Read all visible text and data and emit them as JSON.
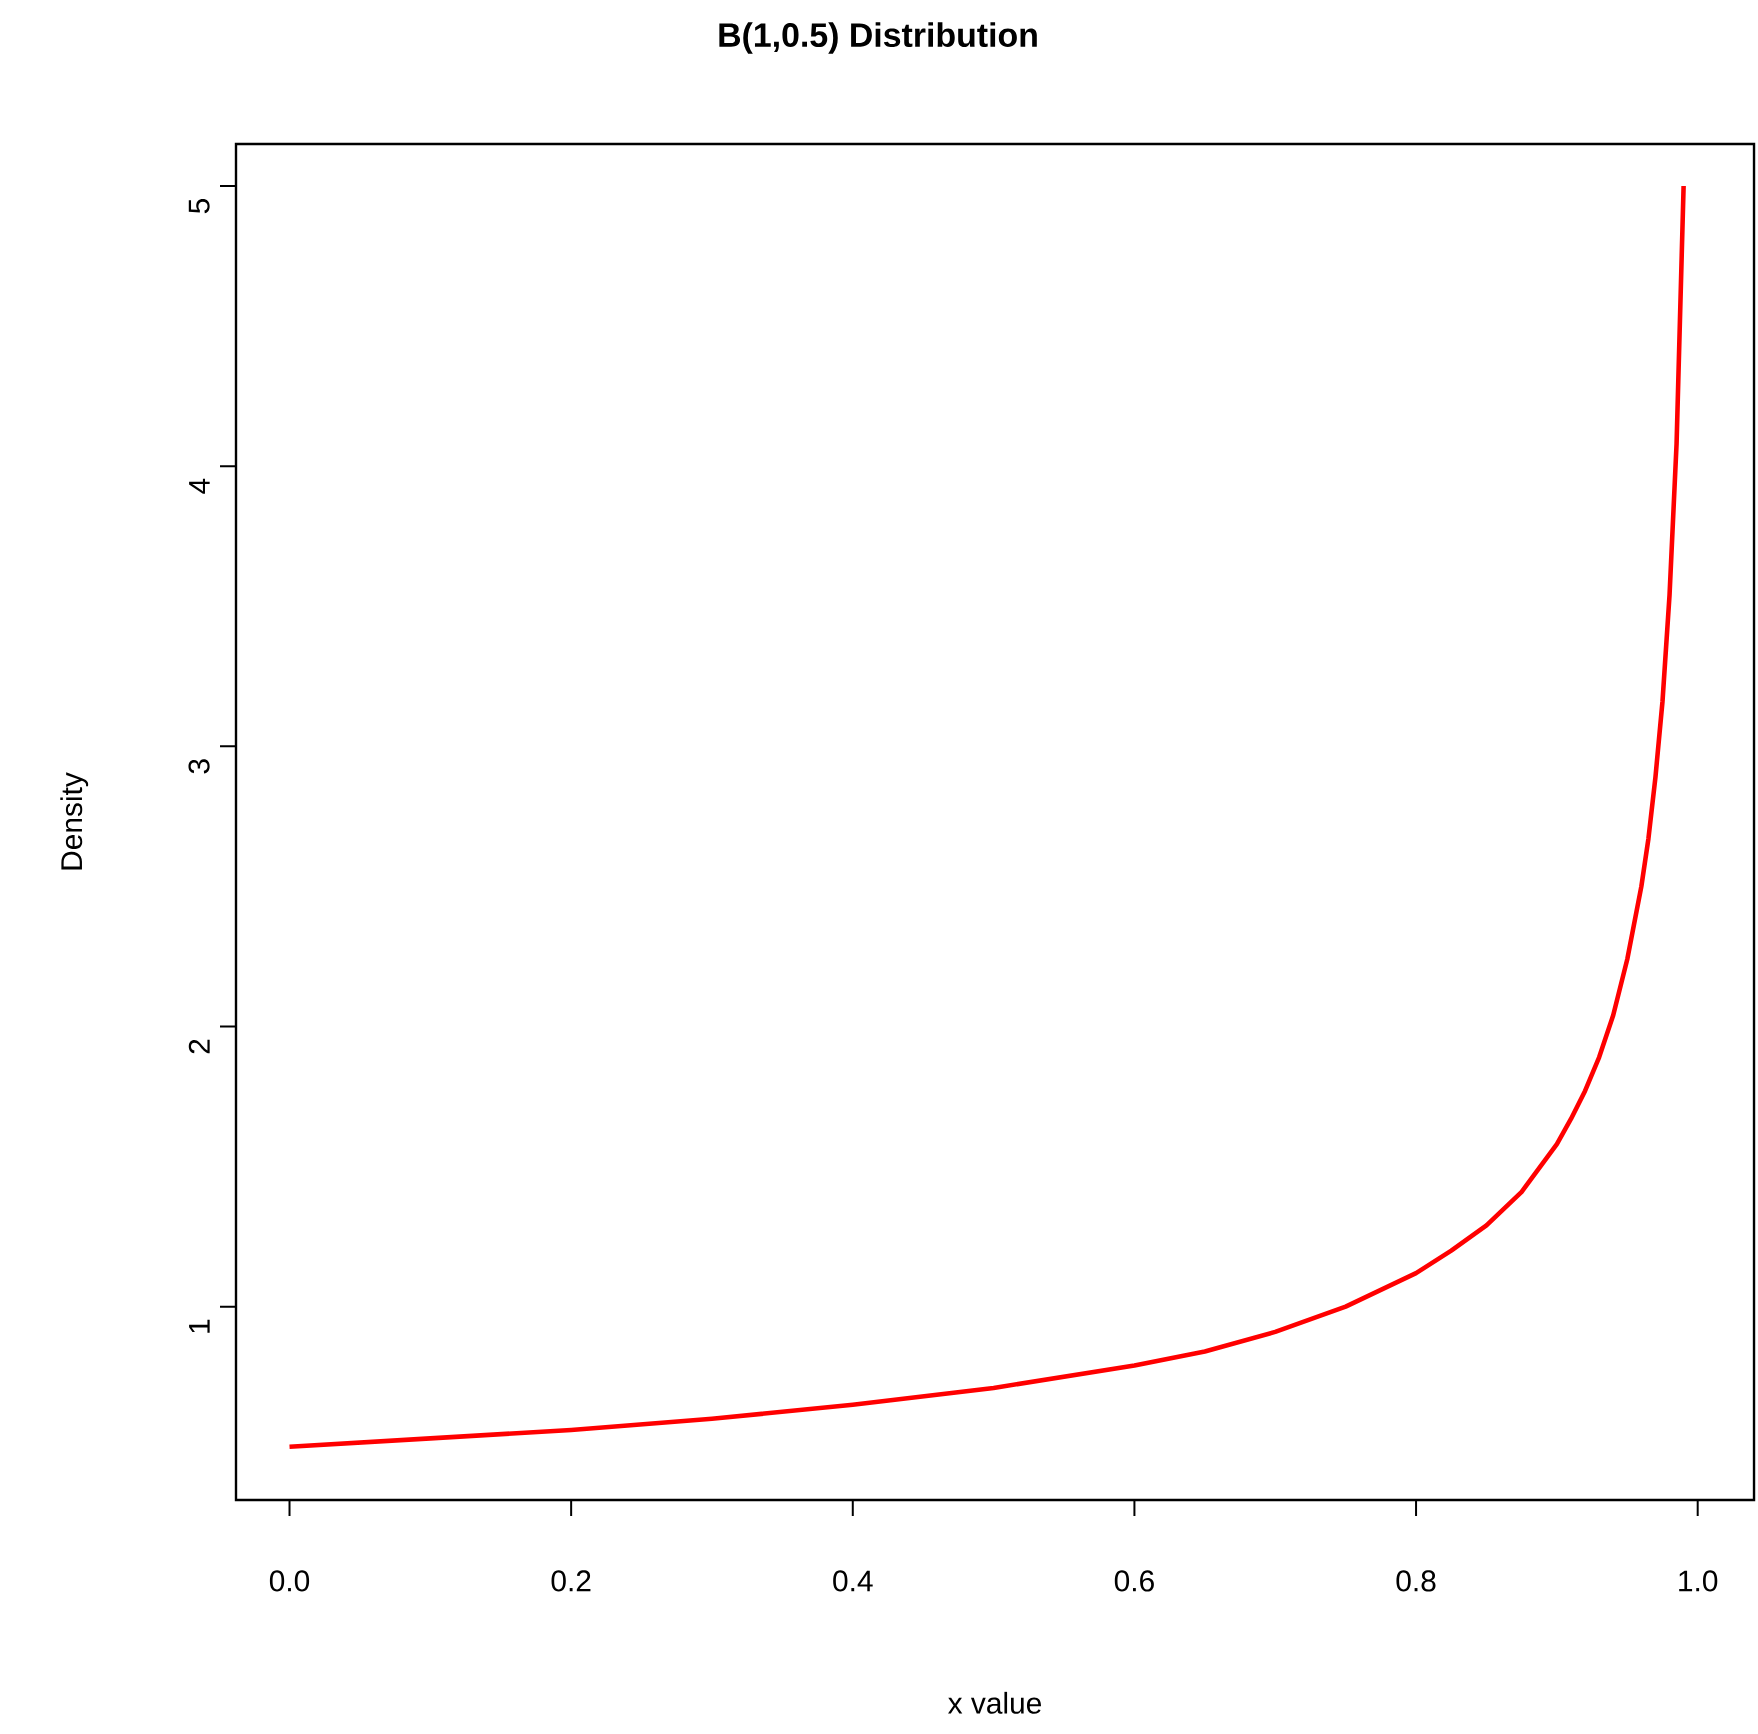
{
  "chart_data": {
    "type": "line",
    "title": "B(1,0.5) Distribution",
    "xlabel": "x value",
    "ylabel": "Density",
    "x": [
      0,
      0.1,
      0.2,
      0.3,
      0.4,
      0.5,
      0.6,
      0.65,
      0.7,
      0.75,
      0.8,
      0.825,
      0.85,
      0.875,
      0.9,
      0.91,
      0.92,
      0.93,
      0.94,
      0.95,
      0.96,
      0.965,
      0.97,
      0.975,
      0.98,
      0.985,
      0.99
    ],
    "series": [
      {
        "color": "#ff0000",
        "values": [
          0.5,
          0.53,
          0.56,
          0.6,
          0.65,
          0.71,
          0.79,
          0.84,
          0.91,
          1.0,
          1.12,
          1.2,
          1.29,
          1.41,
          1.58,
          1.67,
          1.77,
          1.89,
          2.04,
          2.24,
          2.5,
          2.67,
          2.89,
          3.16,
          3.54,
          4.08,
          5.0
        ]
      }
    ],
    "xlim": [
      -0.038,
      1.04
    ],
    "ylim": [
      0.31,
      5.15
    ],
    "xticks": [
      {
        "value": 0,
        "label": "0.0"
      },
      0.2,
      0.4,
      0.6,
      0.8,
      {
        "value": 1,
        "label": "1.0"
      }
    ],
    "yticks": [
      1,
      2,
      3,
      4,
      5
    ],
    "grid": false,
    "marker": "none",
    "line_style": "solid"
  }
}
